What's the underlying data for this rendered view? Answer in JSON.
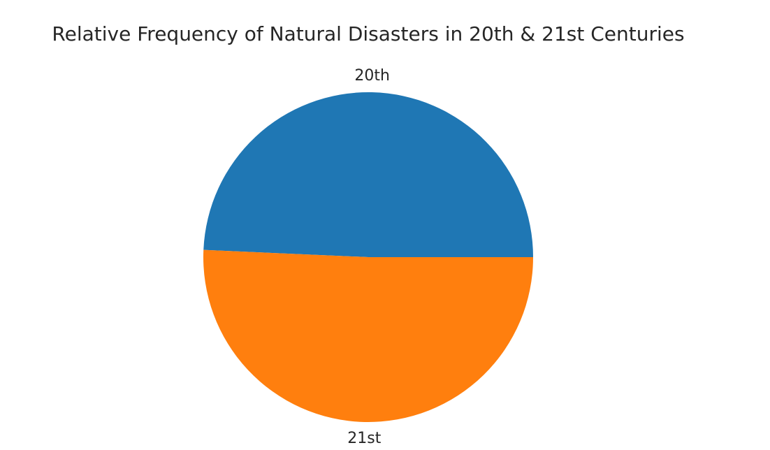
{
  "chart_data": {
    "type": "pie",
    "title": "Relative Frequency of Natural Disasters in 20th & 21st Centuries",
    "labels": [
      "20th",
      "21st"
    ],
    "values": [
      49.3,
      50.7
    ],
    "colors": [
      "#1f77b4",
      "#ff7f0e"
    ],
    "start_angle_deg": 0,
    "direction": "counterclockwise"
  }
}
